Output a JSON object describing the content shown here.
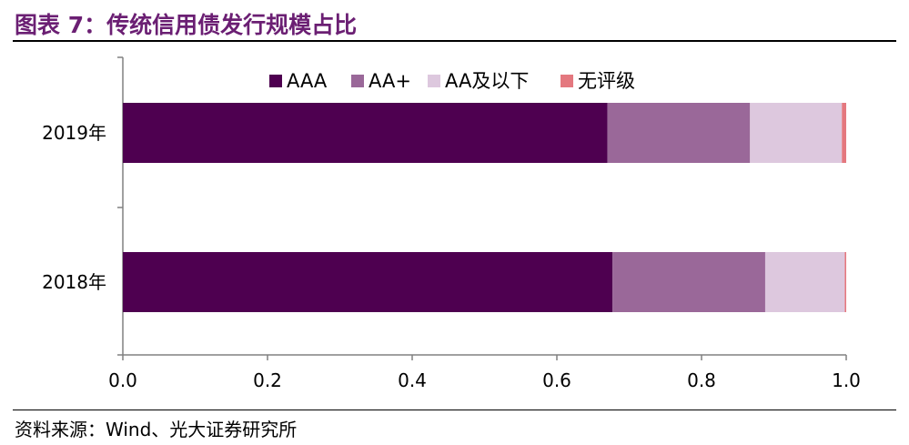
{
  "header": {
    "title": "图表 7：传统信用债发行规模占比"
  },
  "footer": {
    "source": "资料来源：Wind、光大证券研究所"
  },
  "chart_data": {
    "type": "bar",
    "orientation": "horizontal",
    "stacked": true,
    "categories": [
      "2019年",
      "2018年"
    ],
    "series": [
      {
        "name": "AAA",
        "color": "#4e0050",
        "values": [
          0.67,
          0.677
        ]
      },
      {
        "name": "AA+",
        "color": "#9a6899",
        "values": [
          0.197,
          0.211
        ]
      },
      {
        "name": "AA及以下",
        "color": "#ddc8de",
        "values": [
          0.127,
          0.11
        ]
      },
      {
        "name": "无评级",
        "color": "#e4787f",
        "values": [
          0.006,
          0.002
        ]
      }
    ],
    "xlim": [
      0,
      1.0
    ],
    "xticks": [
      "0.0",
      "0.2",
      "0.4",
      "0.6",
      "0.8",
      "1.0"
    ],
    "legend_position": "top",
    "grid": false
  }
}
